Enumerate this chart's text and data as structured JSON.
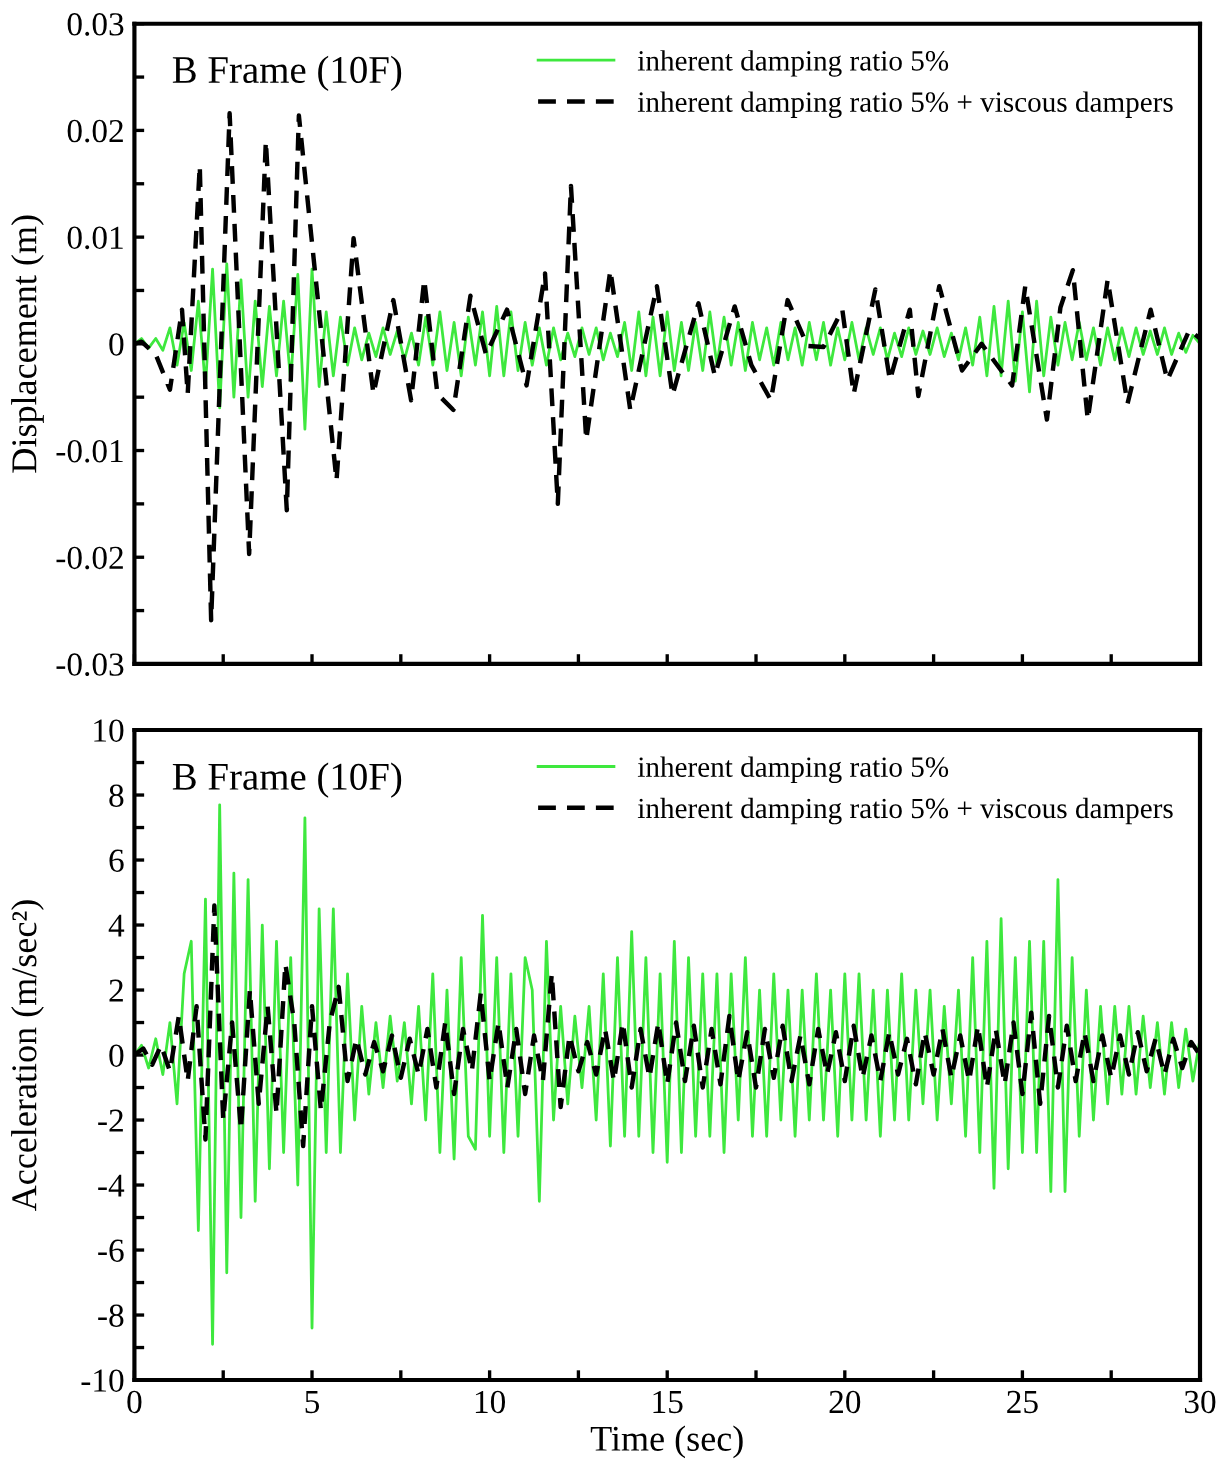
{
  "chart_data": [
    {
      "type": "line",
      "title": "B Frame (10F)",
      "ylabel": "Displacement (m)",
      "legend": "top right",
      "tick_labels": "y",
      "xlim": [
        0,
        30
      ],
      "ylim": [
        -0.03,
        0.03
      ],
      "xticks": [
        0,
        {
          "value": 2.5,
          "label": null
        },
        5,
        {
          "value": 7.5,
          "label": null
        },
        10,
        {
          "value": 12.5,
          "label": null
        },
        15,
        {
          "value": 17.5,
          "label": null
        },
        20,
        {
          "value": 22.5,
          "label": null
        },
        25,
        {
          "value": 27.5,
          "label": null
        },
        30
      ],
      "yticks": [
        -0.03,
        {
          "value": -0.025,
          "label": null
        },
        -0.02,
        {
          "value": -0.015,
          "label": null
        },
        -0.01,
        {
          "value": -0.005,
          "label": null
        },
        0,
        {
          "value": 0.005,
          "label": null
        },
        0.01,
        {
          "value": 0.015,
          "label": null
        },
        0.02,
        {
          "value": 0.025,
          "label": null
        },
        0.03
      ],
      "series": [
        {
          "name": "inherent damping ratio 5%",
          "color": "#3ee83e",
          "line_style": "solid",
          "x": [
            0,
            0.2,
            0.4,
            0.6,
            0.8,
            1,
            1.2,
            1.4,
            1.6,
            1.8,
            2,
            2.2,
            2.4,
            2.6,
            2.8,
            3,
            3.2,
            3.4,
            3.6,
            3.8,
            4,
            4.2,
            4.4,
            4.6,
            4.8,
            5,
            5.2,
            5.4,
            5.6,
            5.8,
            6,
            6.2,
            6.4,
            6.6,
            6.8,
            7,
            7.2,
            7.4,
            7.6,
            7.8,
            8,
            8.2,
            8.4,
            8.6,
            8.8,
            9,
            9.2,
            9.4,
            9.6,
            9.8,
            10,
            10.2,
            10.4,
            10.6,
            10.8,
            11,
            11.2,
            11.4,
            11.6,
            11.8,
            12,
            12.2,
            12.4,
            12.6,
            12.8,
            13,
            13.2,
            13.4,
            13.6,
            13.8,
            14,
            14.2,
            14.4,
            14.6,
            14.8,
            15,
            15.2,
            15.4,
            15.6,
            15.8,
            16,
            16.2,
            16.4,
            16.6,
            16.8,
            17,
            17.2,
            17.4,
            17.6,
            17.8,
            18,
            18.2,
            18.4,
            18.6,
            18.8,
            19,
            19.2,
            19.4,
            19.6,
            19.8,
            20,
            20.2,
            20.4,
            20.6,
            20.8,
            21,
            21.2,
            21.4,
            21.6,
            21.8,
            22,
            22.2,
            22.4,
            22.6,
            22.8,
            23,
            23.2,
            23.4,
            23.6,
            23.8,
            24,
            24.2,
            24.4,
            24.6,
            24.8,
            25,
            25.2,
            25.4,
            25.6,
            25.8,
            26,
            26.2,
            26.4,
            26.6,
            26.8,
            27,
            27.2,
            27.4,
            27.6,
            27.8,
            28,
            28.2,
            28.4,
            28.6,
            28.8,
            29,
            29.2,
            29.4,
            29.6,
            29.8,
            30
          ],
          "values": [
            0,
            0.0005,
            -0.0004,
            0.0005,
            -0.0006,
            0.0015,
            -0.002,
            0.002,
            -0.0025,
            0.004,
            -0.004,
            0.007,
            -0.006,
            0.0075,
            -0.005,
            0.006,
            -0.005,
            0.004,
            -0.004,
            0.0035,
            -0.003,
            0.004,
            -0.0035,
            0.0065,
            -0.008,
            0.007,
            -0.004,
            0.003,
            -0.003,
            0.0025,
            -0.002,
            0.0015,
            -0.0015,
            0.001,
            -0.0012,
            0.0015,
            -0.001,
            0.0012,
            -0.0015,
            0.001,
            -0.002,
            0.0025,
            -0.002,
            0.003,
            -0.0025,
            0.002,
            -0.003,
            0.0025,
            -0.002,
            0.003,
            -0.003,
            0.0035,
            -0.003,
            0.003,
            -0.0025,
            0.002,
            -0.002,
            0.0015,
            -0.002,
            0.0015,
            -0.0015,
            0.001,
            -0.0012,
            0.0015,
            -0.001,
            0.0015,
            -0.0015,
            0.001,
            -0.0012,
            0.002,
            -0.0025,
            0.003,
            -0.003,
            0.0025,
            -0.003,
            0.003,
            -0.0025,
            0.002,
            -0.0025,
            0.002,
            -0.0025,
            0.003,
            -0.002,
            0.0025,
            -0.002,
            0.002,
            -0.0025,
            0.002,
            -0.0015,
            0.0015,
            -0.002,
            0.002,
            -0.0015,
            0.0015,
            -0.002,
            0.002,
            -0.0015,
            0.002,
            -0.002,
            0.0015,
            -0.0015,
            0.002,
            -0.0015,
            0.0015,
            -0.001,
            0.0015,
            -0.0015,
            0.001,
            -0.0012,
            0.0015,
            -0.001,
            0.0012,
            -0.001,
            0.0015,
            -0.0012,
            0.001,
            -0.0015,
            0.0015,
            -0.002,
            0.0025,
            -0.003,
            0.0035,
            -0.003,
            0.004,
            -0.0035,
            0.003,
            -0.0045,
            0.004,
            -0.003,
            0.0025,
            -0.002,
            0.002,
            -0.0015,
            0.002,
            -0.0015,
            0.0015,
            -0.002,
            0.0015,
            -0.0015,
            0.0015,
            -0.0012,
            0.0015,
            -0.001,
            0.0012,
            -0.001,
            0.0015,
            -0.001,
            0.001,
            -0.0008,
            0.0008,
            0
          ]
        },
        {
          "name": "inherent damping ratio 5% + viscous dampers",
          "color": "#000000",
          "line_style": "dashed",
          "x": [
            0,
            0.2,
            0.6,
            1.0,
            1.34,
            1.5,
            1.84,
            2.16,
            2.68,
            3.23,
            3.7,
            4.29,
            4.63,
            5.69,
            6.17,
            6.73,
            7.29,
            7.79,
            8.16,
            8.53,
            8.98,
            9.46,
            9.9,
            10.49,
            11.04,
            11.56,
            11.92,
            12.29,
            12.72,
            13.4,
            13.96,
            14.71,
            15.15,
            15.88,
            16.34,
            16.9,
            17.37,
            17.92,
            18.39,
            18.95,
            19.4,
            19.93,
            20.25,
            20.86,
            21.27,
            21.83,
            22.07,
            22.66,
            23.3,
            23.85,
            24.71,
            25.08,
            25.69,
            26.07,
            26.42,
            26.84,
            27.4,
            27.96,
            28.61,
            29.08,
            29.7,
            30
          ],
          "values": [
            0,
            0.0002,
            -0.001,
            -0.0043,
            0.0032,
            -0.0047,
            0.0167,
            -0.0259,
            0.0216,
            -0.0197,
            0.019,
            -0.0156,
            0.0214,
            -0.0128,
            0.0099,
            -0.0047,
            0.0041,
            -0.0053,
            0.006,
            -0.0047,
            -0.0062,
            0.0045,
            -0.001,
            0.0032,
            -0.0039,
            0.0066,
            -0.015,
            0.0148,
            -0.009,
            0.0069,
            -0.0062,
            0.0054,
            -0.0048,
            0.0038,
            -0.003,
            0.0035,
            -0.002,
            -0.0053,
            0.0041,
            -0.0002,
            -0.0003,
            0.0032,
            -0.0047,
            0.0051,
            -0.0034,
            0.0032,
            -0.0049,
            0.0054,
            -0.0025,
            0,
            -0.0039,
            0.0054,
            -0.0071,
            0.0034,
            0.0069,
            -0.0071,
            0.006,
            -0.0056,
            0.0032,
            -0.0034,
            0.0013,
            0.0005
          ]
        }
      ]
    },
    {
      "type": "line",
      "title": "B Frame (10F)",
      "xlabel": "Time (sec)",
      "ylabel": "Acceleration (m/sec²)",
      "legend": "top right",
      "xlim": [
        0,
        30
      ],
      "ylim": [
        -10,
        10
      ],
      "xticks": [
        0,
        {
          "value": 2.5,
          "label": null
        },
        5,
        {
          "value": 7.5,
          "label": null
        },
        10,
        {
          "value": 12.5,
          "label": null
        },
        15,
        {
          "value": 17.5,
          "label": null
        },
        20,
        {
          "value": 22.5,
          "label": null
        },
        25,
        {
          "value": 27.5,
          "label": null
        },
        30
      ],
      "yticks": [
        -10,
        {
          "value": -9,
          "label": null
        },
        -8,
        {
          "value": -7,
          "label": null
        },
        -6,
        {
          "value": -5,
          "label": null
        },
        -4,
        {
          "value": -3,
          "label": null
        },
        -2,
        {
          "value": -1,
          "label": null
        },
        0,
        {
          "value": 1,
          "label": null
        },
        2,
        {
          "value": 3,
          "label": null
        },
        4,
        {
          "value": 5,
          "label": null
        },
        6,
        {
          "value": 7,
          "label": null
        },
        8,
        {
          "value": 9,
          "label": null
        },
        10
      ],
      "series": [
        {
          "name": "inherent damping ratio 5%",
          "color": "#3ee83e",
          "line_style": "solid",
          "x": [
            0,
            0.2,
            0.4,
            0.6,
            0.8,
            1,
            1.2,
            1.4,
            1.6,
            1.8,
            2,
            2.2,
            2.4,
            2.6,
            2.8,
            3,
            3.2,
            3.4,
            3.6,
            3.8,
            4,
            4.2,
            4.4,
            4.6,
            4.8,
            5,
            5.2,
            5.4,
            5.6,
            5.8,
            6,
            6.2,
            6.4,
            6.6,
            6.8,
            7,
            7.2,
            7.4,
            7.6,
            7.8,
            8,
            8.2,
            8.4,
            8.6,
            8.8,
            9,
            9.2,
            9.4,
            9.6,
            9.8,
            10,
            10.2,
            10.4,
            10.6,
            10.8,
            11,
            11.2,
            11.4,
            11.6,
            11.8,
            12,
            12.2,
            12.4,
            12.6,
            12.8,
            13,
            13.2,
            13.4,
            13.6,
            13.8,
            14,
            14.2,
            14.4,
            14.6,
            14.8,
            15,
            15.2,
            15.4,
            15.6,
            15.8,
            16,
            16.2,
            16.4,
            16.6,
            16.8,
            17,
            17.2,
            17.4,
            17.6,
            17.8,
            18,
            18.2,
            18.4,
            18.6,
            18.8,
            19,
            19.2,
            19.4,
            19.6,
            19.8,
            20,
            20.2,
            20.4,
            20.6,
            20.8,
            21,
            21.2,
            21.4,
            21.6,
            21.8,
            22,
            22.2,
            22.4,
            22.6,
            22.8,
            23,
            23.2,
            23.4,
            23.6,
            23.8,
            24,
            24.2,
            24.4,
            24.6,
            24.8,
            25,
            25.2,
            25.4,
            25.6,
            25.8,
            26,
            26.2,
            26.4,
            26.6,
            26.8,
            27,
            27.2,
            27.4,
            27.6,
            27.8,
            28,
            28.2,
            28.4,
            28.6,
            28.8,
            29,
            29.2,
            29.4,
            29.6,
            29.8,
            30
          ],
          "values": [
            0,
            0.3,
            -0.4,
            0.5,
            -0.6,
            1.0,
            -1.5,
            2.5,
            3.5,
            -5.4,
            4.8,
            -8.9,
            7.7,
            -6.7,
            5.6,
            -5.0,
            5.4,
            -4.5,
            4.0,
            -3.5,
            3.5,
            -3.0,
            3.0,
            -4.0,
            7.3,
            -8.4,
            4.5,
            -3.0,
            4.5,
            -3.0,
            2.5,
            -2.0,
            1.5,
            -1.2,
            1.0,
            -1.0,
            1.2,
            -0.8,
            1.0,
            -1.5,
            1.5,
            -2.0,
            2.5,
            -3.0,
            2.0,
            -3.2,
            3.0,
            -2.5,
            -2.9,
            4.3,
            -2.5,
            3.0,
            -3.0,
            2.5,
            -2.5,
            3.0,
            2.0,
            -4.5,
            3.5,
            -2.0,
            1.5,
            -1.5,
            1.2,
            -1.0,
            1.5,
            -2.0,
            2.5,
            -2.8,
            3.0,
            -2.5,
            3.8,
            -2.5,
            3.0,
            -3.0,
            2.5,
            -3.3,
            3.5,
            -3.0,
            3.0,
            -2.5,
            2.5,
            -2.5,
            2.5,
            -3.0,
            2.5,
            -2.0,
            3.0,
            -2.5,
            2.0,
            -2.5,
            2.5,
            -2.0,
            2.0,
            -2.5,
            2.0,
            -2.0,
            2.5,
            -2.0,
            2.0,
            -2.5,
            2.5,
            -2.0,
            2.5,
            -2.0,
            2.0,
            -2.5,
            2.0,
            -2.0,
            2.5,
            -2.0,
            2.0,
            -1.5,
            2.0,
            -2.0,
            1.5,
            -1.5,
            2.0,
            -2.5,
            3.0,
            -3.0,
            3.5,
            -4.1,
            4.2,
            -3.5,
            3.0,
            -3.0,
            3.5,
            -3.0,
            3.5,
            -4.2,
            5.4,
            -4.2,
            3.0,
            -2.5,
            2.0,
            -2.0,
            1.5,
            -1.5,
            1.5,
            -1.2,
            1.5,
            -1.2,
            1.2,
            -1.0,
            1.0,
            -1.2,
            1.0,
            -1.0,
            0.8,
            -0.8,
            0.5
          ]
        },
        {
          "name": "inherent damping ratio 5% + viscous dampers",
          "color": "#000000",
          "line_style": "dashed",
          "x": [
            0,
            0.25,
            0.5,
            0.75,
            1,
            1.25,
            1.5,
            1.75,
            2,
            2.25,
            2.5,
            2.75,
            3,
            3.25,
            3.5,
            3.75,
            4,
            4.25,
            4.5,
            4.75,
            5,
            5.25,
            5.5,
            5.75,
            6,
            6.25,
            6.5,
            6.75,
            7,
            7.25,
            7.5,
            7.75,
            8,
            8.25,
            8.5,
            8.75,
            9,
            9.25,
            9.5,
            9.75,
            10,
            10.25,
            10.5,
            10.75,
            11,
            11.25,
            11.5,
            11.75,
            12,
            12.25,
            12.5,
            12.75,
            13,
            13.25,
            13.5,
            13.75,
            14,
            14.25,
            14.5,
            14.75,
            15,
            15.25,
            15.5,
            15.75,
            16,
            16.25,
            16.5,
            16.75,
            17,
            17.25,
            17.5,
            17.75,
            18,
            18.25,
            18.5,
            18.75,
            19,
            19.25,
            19.5,
            19.75,
            20,
            20.25,
            20.5,
            20.75,
            21,
            21.25,
            21.5,
            21.75,
            22,
            22.25,
            22.5,
            22.75,
            23,
            23.25,
            23.5,
            23.75,
            24,
            24.25,
            24.5,
            24.75,
            25,
            25.25,
            25.5,
            25.75,
            26,
            26.25,
            26.5,
            26.75,
            27,
            27.25,
            27.5,
            27.75,
            28,
            28.25,
            28.5,
            28.75,
            29,
            29.25,
            29.5,
            29.75,
            30
          ],
          "values": [
            0,
            0.2,
            -0.3,
            0.3,
            -0.5,
            1.2,
            -0.8,
            1.5,
            -2.6,
            4.6,
            -2.0,
            1.0,
            -2.3,
            2.0,
            -1.5,
            1.5,
            -1.8,
            2.8,
            1.0,
            -2.8,
            1.5,
            -1.7,
            1.0,
            2.1,
            -0.8,
            0.5,
            -0.6,
            0.4,
            -0.5,
            0.6,
            -0.7,
            0.5,
            -0.6,
            0.8,
            -1.0,
            1.0,
            -1.2,
            0.8,
            -0.5,
            1.9,
            -0.8,
            1.0,
            -1.0,
            0.8,
            -1.2,
            0.6,
            -0.8,
            2.5,
            -1.6,
            0.6,
            -0.5,
            0.4,
            -0.6,
            0.8,
            -0.8,
            1.0,
            -1.0,
            0.8,
            -0.7,
            1.0,
            -0.9,
            1.0,
            -0.8,
            0.9,
            -1.0,
            0.8,
            -0.9,
            1.2,
            -0.8,
            0.7,
            -1.0,
            0.8,
            -0.7,
            0.9,
            -0.8,
            0.6,
            -0.9,
            0.8,
            -0.6,
            0.7,
            -0.8,
            0.9,
            -0.7,
            0.6,
            -0.8,
            0.7,
            -0.6,
            0.5,
            -0.9,
            0.7,
            -0.6,
            0.8,
            -0.7,
            0.6,
            -0.8,
            0.9,
            -1.0,
            0.8,
            -0.9,
            1.0,
            -1.2,
            1.3,
            -1.5,
            1.2,
            -1.0,
            0.9,
            -0.8,
            0.7,
            -0.8,
            0.6,
            -0.7,
            0.6,
            -0.6,
            0.7,
            -0.5,
            0.5,
            -0.6,
            0.5,
            -0.4,
            0.4,
            0
          ]
        }
      ]
    }
  ]
}
